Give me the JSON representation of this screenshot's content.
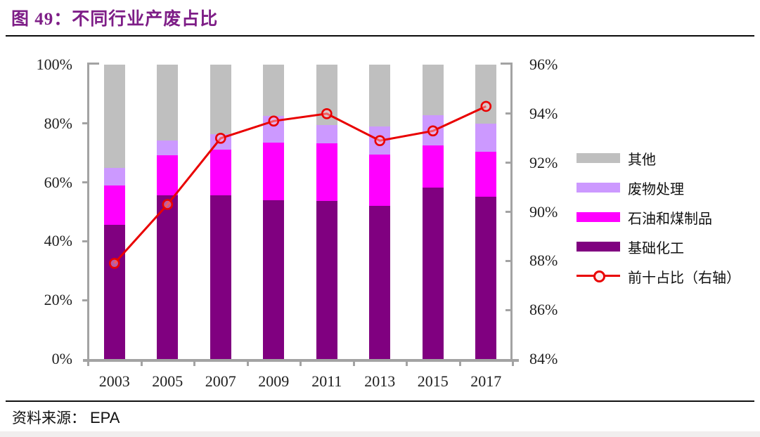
{
  "title": {
    "text": "图 49：不同行业产废占比"
  },
  "source": {
    "label": "资料来源：",
    "value": "EPA"
  },
  "colors": {
    "title": "#7E1E87",
    "axis": "#A3A3A3",
    "text": "#1F1F1F",
    "line": "#E90000",
    "marker_fill": "rgba(255,205,210,0.45)"
  },
  "chart_data": {
    "type": "bar",
    "subtype": "stacked-bar-with-line",
    "title": "图 49：不同行业产废占比",
    "categories": [
      "2003",
      "2005",
      "2007",
      "2009",
      "2011",
      "2013",
      "2015",
      "2017"
    ],
    "series": [
      {
        "name": "基础化工",
        "type": "bar",
        "axis": "left",
        "color": "#800080",
        "values": [
          45.5,
          55.5,
          55.6,
          54.0,
          53.7,
          52.0,
          58.3,
          55.2
        ]
      },
      {
        "name": "石油和煤制品",
        "type": "bar",
        "axis": "left",
        "color": "#FF00FF",
        "values": [
          13.5,
          13.7,
          15.5,
          19.5,
          19.5,
          17.5,
          14.2,
          15.2
        ]
      },
      {
        "name": "废物处理",
        "type": "bar",
        "axis": "left",
        "color": "#CC99FF",
        "values": [
          6.0,
          5.0,
          5.3,
          9.0,
          6.3,
          9.5,
          10.3,
          9.6
        ]
      },
      {
        "name": "其他",
        "type": "bar",
        "axis": "left",
        "color": "#BFBFBF",
        "values": [
          35.0,
          25.8,
          23.6,
          17.5,
          20.5,
          21.0,
          17.2,
          20.0
        ]
      },
      {
        "name": "前十占比（右轴）",
        "type": "line",
        "axis": "right",
        "color": "#E90000",
        "values": [
          87.9,
          90.3,
          93.0,
          93.7,
          94.0,
          92.9,
          93.3,
          94.3
        ]
      }
    ],
    "left_axis": {
      "min": 0,
      "max": 100,
      "step": 20,
      "tick_labels": [
        "0%",
        "20%",
        "40%",
        "60%",
        "80%",
        "100%"
      ]
    },
    "right_axis": {
      "min": 84,
      "max": 96,
      "step": 2,
      "tick_labels": [
        "84%",
        "86%",
        "88%",
        "90%",
        "92%",
        "94%",
        "96%"
      ]
    },
    "grid": false,
    "legend_position": "right",
    "legend": [
      {
        "label": "其他",
        "swatch": "rect",
        "color": "#BFBFBF"
      },
      {
        "label": "废物处理",
        "swatch": "rect",
        "color": "#CC99FF"
      },
      {
        "label": "石油和煤制品",
        "swatch": "rect",
        "color": "#FF00FF"
      },
      {
        "label": "基础化工",
        "swatch": "rect",
        "color": "#800080"
      },
      {
        "label": "前十占比（右轴）",
        "swatch": "line-marker",
        "color": "#E90000"
      }
    ]
  }
}
